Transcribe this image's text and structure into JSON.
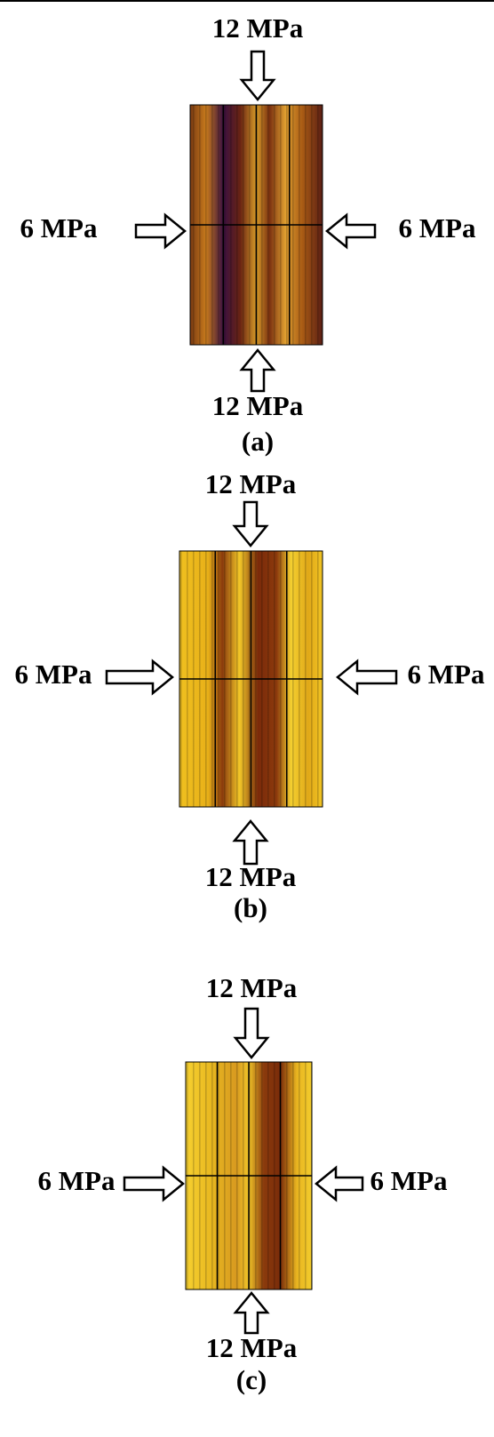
{
  "panels": [
    {
      "top_label": "12 MPa",
      "left_label": "6 MPa",
      "right_label": "6 MPa",
      "bottom_label": "12 MPa",
      "caption": "(a)"
    },
    {
      "top_label": "12 MPa",
      "left_label": "6 MPa",
      "right_label": "6 MPa",
      "bottom_label": "12 MPa",
      "caption": "(b)"
    },
    {
      "top_label": "12 MPa",
      "left_label": "6 MPa",
      "right_label": "6 MPa",
      "bottom_label": "12 MPa",
      "caption": "(c)"
    }
  ]
}
